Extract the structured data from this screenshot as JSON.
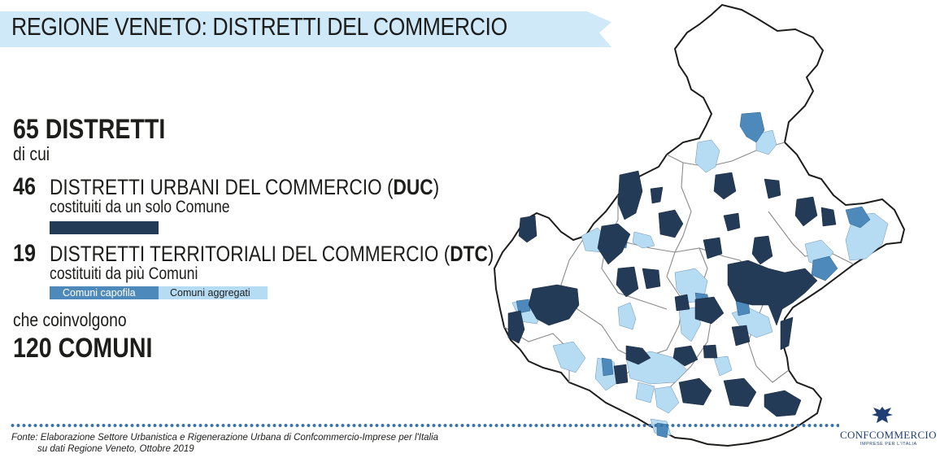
{
  "title": "REGIONE VENETO: DISTRETTI DEL COMMERCIO",
  "total": {
    "value": "65 DISTRETTI",
    "suffix": "di cui"
  },
  "duc": {
    "count": "46",
    "label": "DISTRETTI URBANI DEL COMMERCIO (",
    "abbr": "DUC",
    "close": ")",
    "desc": "costituiti da un solo Comune"
  },
  "dtc": {
    "count": "19",
    "label": "DISTRETTI TERRITORIALI DEL COMMERCIO (",
    "abbr": "DTC",
    "close": ")",
    "desc": "costituiti da più Comuni"
  },
  "legend": {
    "capofila": "Comuni capofila",
    "aggregati": "Comuni aggregati"
  },
  "involve": {
    "text": "che coinvolgono",
    "value": "120 COMUNI"
  },
  "source": {
    "line1": "Fonte: Elaborazione Settore Urbanistica e Rigenerazione Urbana di Confcommercio-Imprese per l'Italia",
    "line2": "su dati Regione Veneto, Ottobre 2019"
  },
  "logo": {
    "name": "CONFCOMMERCIO",
    "tagline": "IMPRESE PER L'ITALIA"
  },
  "colors": {
    "duc": "#243b57",
    "capofila": "#4e89bc",
    "aggregati": "#b6dcf4",
    "title_band": "#cfe9f8",
    "border": "#1d1d1b"
  }
}
